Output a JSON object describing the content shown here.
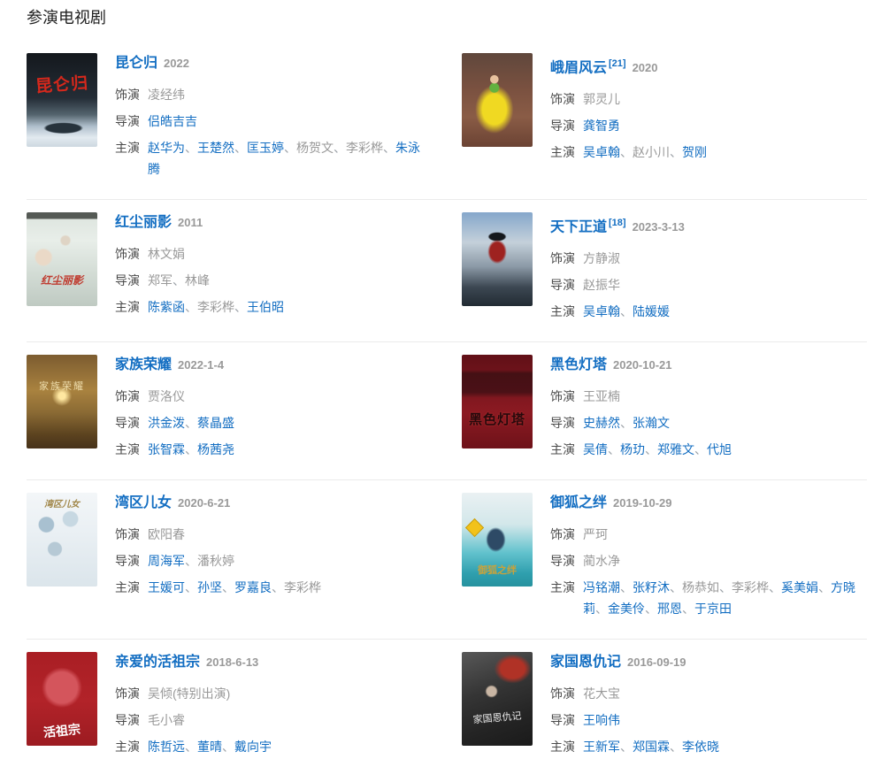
{
  "separator": "、",
  "colors": {
    "link_blue": "#136ec2",
    "value_gray": "#999999",
    "label_gray": "#4c4c4c",
    "divider": "#ebebeb"
  },
  "section": {
    "title": "参演电视剧"
  },
  "labels": {
    "role": "饰演",
    "director": "导演",
    "cast": "主演"
  },
  "shows": [
    {
      "title": "昆仑归",
      "date": "2022",
      "role": "凌经纬",
      "poster_text": "昆仑归",
      "directors": [
        {
          "t": "侣皓吉吉",
          "l": true
        }
      ],
      "cast": [
        {
          "t": "赵华为",
          "l": true
        },
        {
          "t": "王楚然",
          "l": true
        },
        {
          "t": "匡玉婷",
          "l": true
        },
        {
          "t": "杨贺文",
          "l": false
        },
        {
          "t": "李彩桦",
          "l": false
        },
        {
          "t": "朱泳腾",
          "l": true
        }
      ]
    },
    {
      "title": "峨眉风云",
      "ref": "[21]",
      "date": "2020",
      "role": "郭灵儿",
      "poster_text": "",
      "directors": [
        {
          "t": "龚智勇",
          "l": true
        }
      ],
      "cast": [
        {
          "t": "吴卓翰",
          "l": true
        },
        {
          "t": "赵小川",
          "l": false
        },
        {
          "t": "贺刚",
          "l": true
        }
      ]
    },
    {
      "title": "红尘丽影",
      "date": "2011",
      "role": "林文娟",
      "poster_text": "红尘丽影",
      "directors": [
        {
          "t": "郑军",
          "l": false
        },
        {
          "t": "林峰",
          "l": false
        }
      ],
      "cast": [
        {
          "t": "陈紫函",
          "l": true
        },
        {
          "t": "李彩桦",
          "l": false
        },
        {
          "t": "王伯昭",
          "l": true
        }
      ]
    },
    {
      "title": "天下正道",
      "ref": "[18]",
      "date": "2023-3-13",
      "role": "方静淑",
      "poster_text": "",
      "directors": [
        {
          "t": "赵振华",
          "l": false
        }
      ],
      "cast": [
        {
          "t": "吴卓翰",
          "l": true
        },
        {
          "t": "陆媛媛",
          "l": true
        }
      ]
    },
    {
      "title": "家族荣耀",
      "date": "2022-1-4",
      "role": "贾洛仪",
      "poster_text": "家族荣耀",
      "directors": [
        {
          "t": "洪金泼",
          "l": true
        },
        {
          "t": "蔡晶盛",
          "l": true
        }
      ],
      "cast": [
        {
          "t": "张智霖",
          "l": true
        },
        {
          "t": "杨茜尧",
          "l": true
        }
      ]
    },
    {
      "title": "黑色灯塔",
      "date": "2020-10-21",
      "role": "王亚楠",
      "poster_text": "黑色灯塔",
      "directors": [
        {
          "t": "史赫然",
          "l": true
        },
        {
          "t": "张瀚文",
          "l": true
        }
      ],
      "cast": [
        {
          "t": "吴倩",
          "l": true
        },
        {
          "t": "杨玏",
          "l": true
        },
        {
          "t": "郑雅文",
          "l": true
        },
        {
          "t": "代旭",
          "l": true
        }
      ]
    },
    {
      "title": "湾区儿女",
      "date": "2020-6-21",
      "role": "欧阳春",
      "poster_text": "湾区儿女",
      "directors": [
        {
          "t": "周海军",
          "l": true
        },
        {
          "t": "潘秋婷",
          "l": false
        }
      ],
      "cast": [
        {
          "t": "王媛可",
          "l": true
        },
        {
          "t": "孙坚",
          "l": true
        },
        {
          "t": "罗嘉良",
          "l": true
        },
        {
          "t": "李彩桦",
          "l": false
        }
      ]
    },
    {
      "title": "御狐之绊",
      "date": "2019-10-29",
      "role": "严珂",
      "poster_text": "御狐之绊",
      "directors": [
        {
          "t": "蔺水净",
          "l": false
        }
      ],
      "cast": [
        {
          "t": "冯铭潮",
          "l": true
        },
        {
          "t": "张籽沐",
          "l": true
        },
        {
          "t": "杨恭如",
          "l": false
        },
        {
          "t": "李彩桦",
          "l": false
        },
        {
          "t": "奚美娟",
          "l": true
        },
        {
          "t": "方晓莉",
          "l": true
        },
        {
          "t": "金美伶",
          "l": true
        },
        {
          "t": "邢恩",
          "l": true
        },
        {
          "t": "于京田",
          "l": true
        }
      ]
    },
    {
      "title": "亲爱的活祖宗",
      "date": "2018-6-13",
      "role": "吴倾(特别出演)",
      "poster_text": "活祖宗",
      "directors": [
        {
          "t": "毛小睿",
          "l": false
        }
      ],
      "cast": [
        {
          "t": "陈哲远",
          "l": true
        },
        {
          "t": "董晴",
          "l": true
        },
        {
          "t": "戴向宇",
          "l": true
        }
      ]
    },
    {
      "title": "家国恩仇记",
      "date": "2016-09-19",
      "role": "花大宝",
      "poster_text": "家国恩仇记",
      "directors": [
        {
          "t": "王响伟",
          "l": true
        }
      ],
      "cast": [
        {
          "t": "王新军",
          "l": true
        },
        {
          "t": "郑国霖",
          "l": true
        },
        {
          "t": "李依晓",
          "l": true
        }
      ]
    }
  ]
}
